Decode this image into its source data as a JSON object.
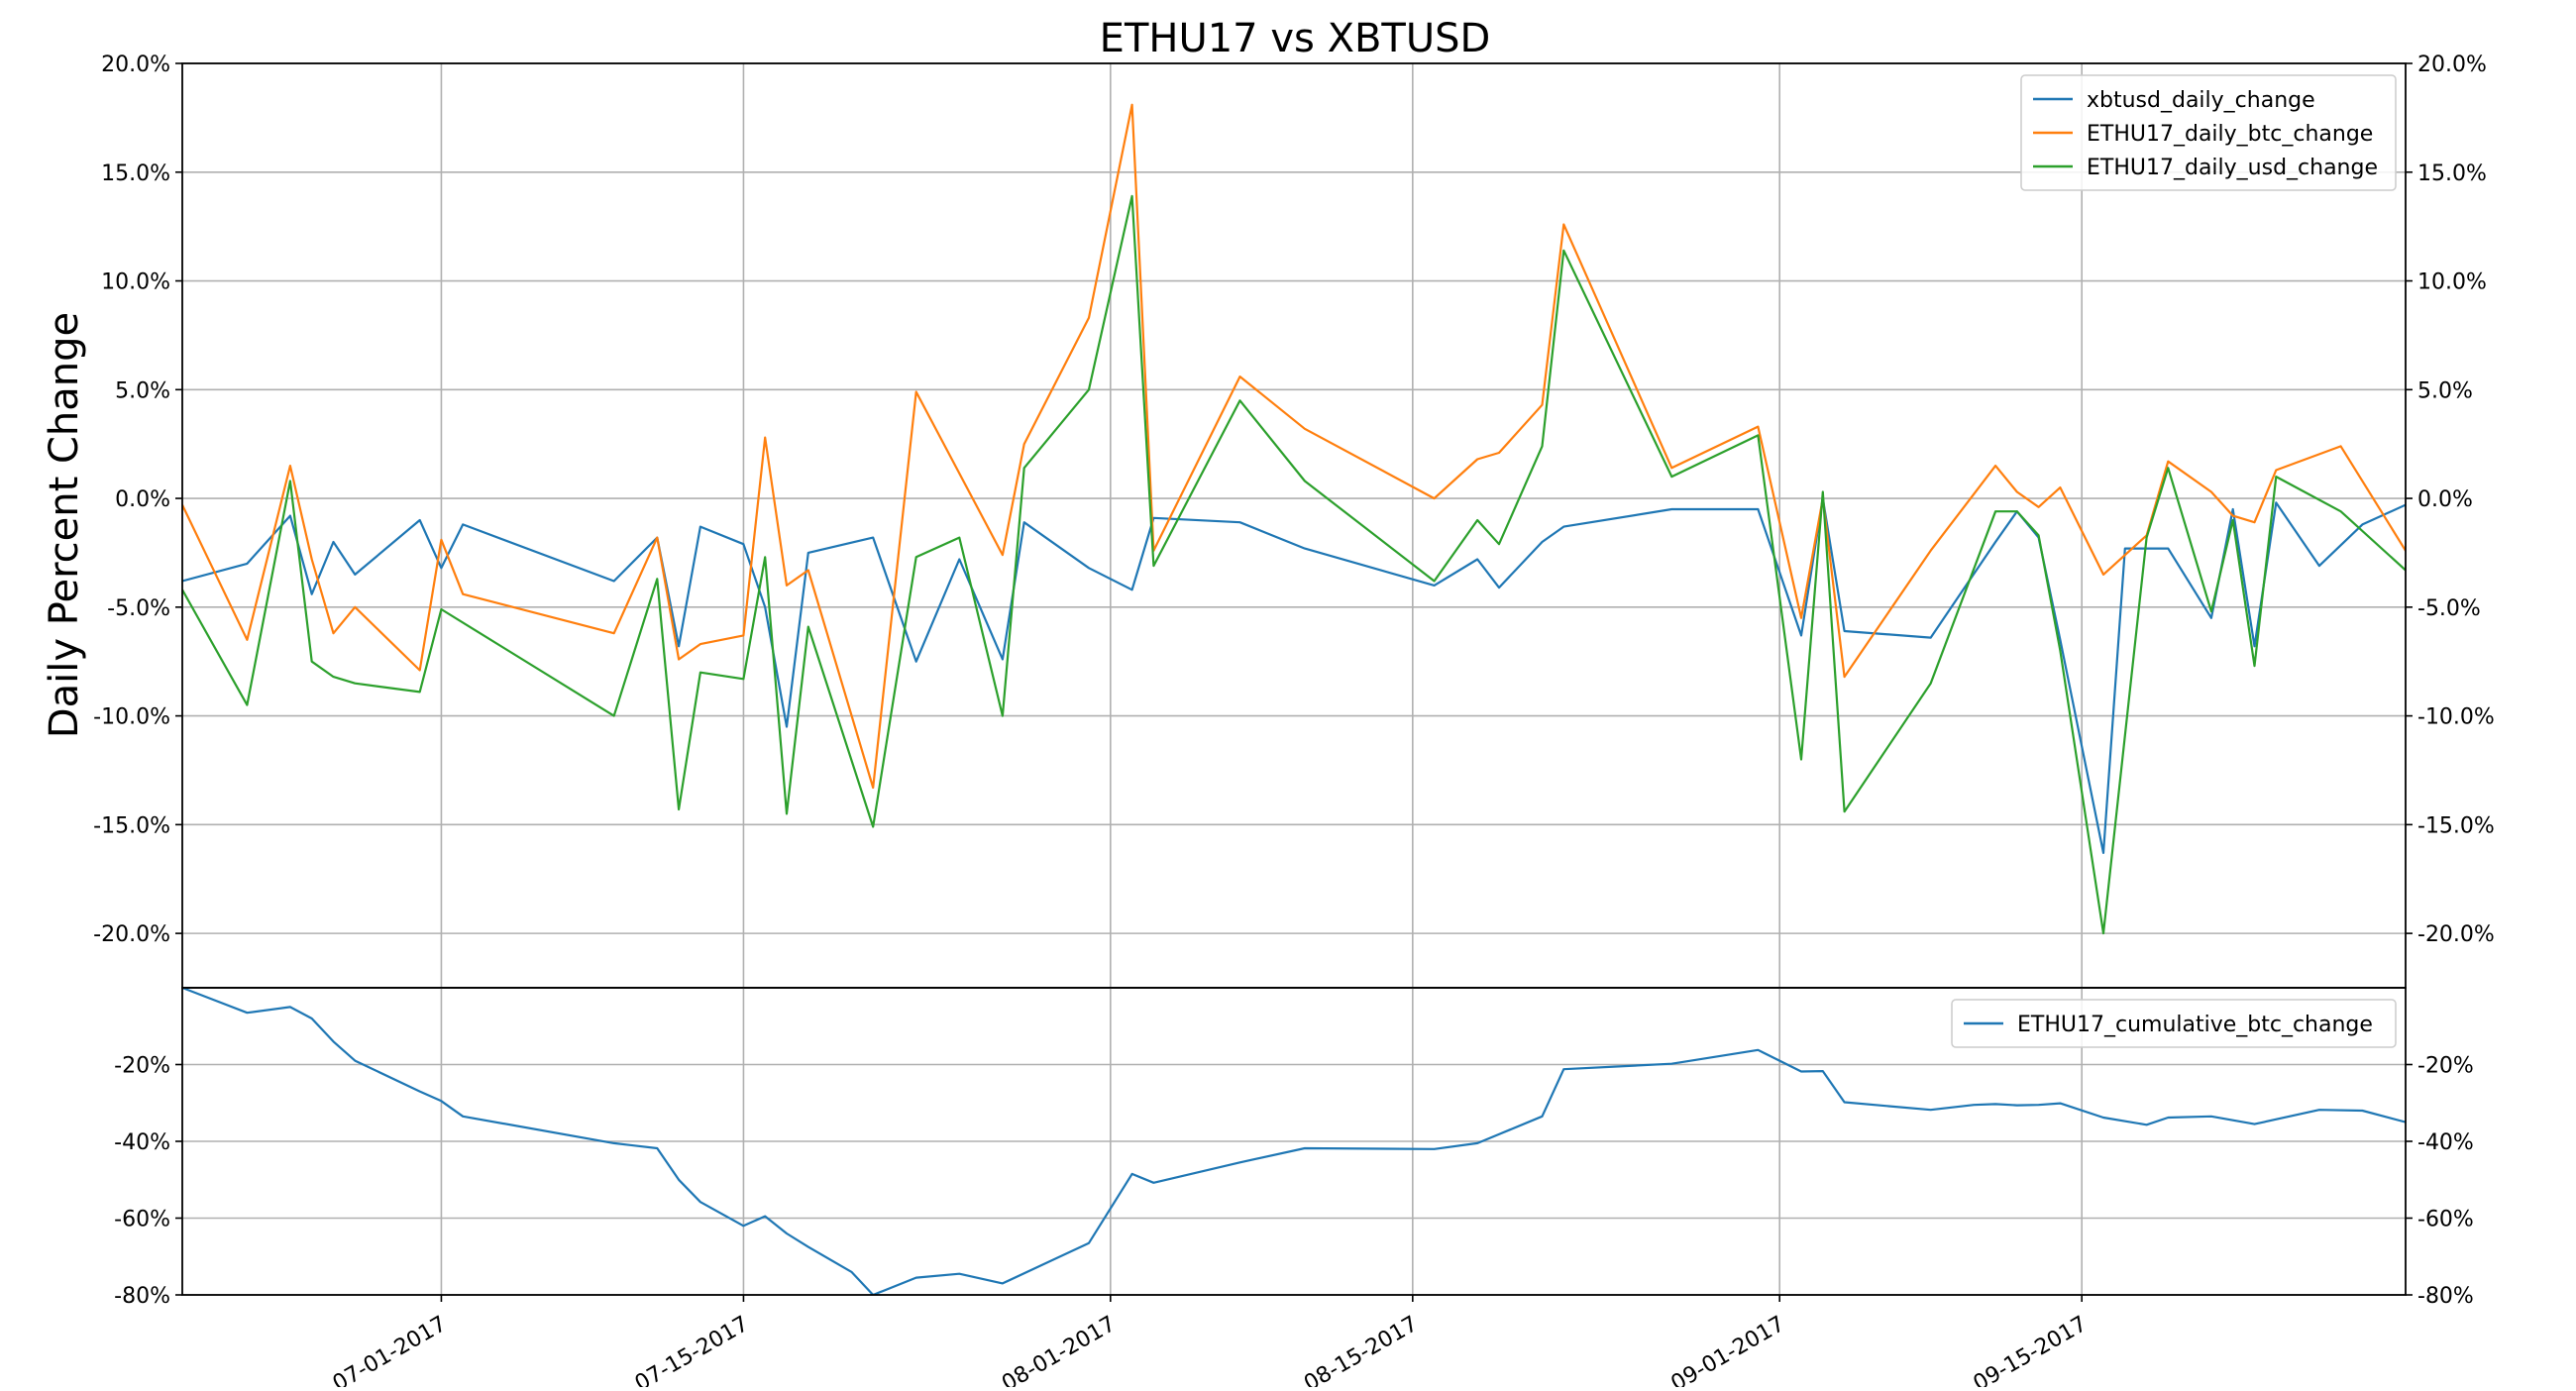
{
  "chart_data": [
    {
      "type": "line",
      "title": "ETHU17 vs XBTUSD",
      "xlabel": "",
      "ylabel": "Daily Percent Change",
      "ylim": [
        -22.5,
        20.0
      ],
      "yticks": [
        20,
        15,
        10,
        5,
        0,
        -5,
        -10,
        -15,
        -20
      ],
      "ytick_labels": [
        "20.0%",
        "15.0%",
        "10.0%",
        "5.0%",
        "0.0%",
        "-5.0%",
        "-10.0%",
        "-15.0%",
        "-20.0%"
      ],
      "x_date_range": [
        "2017-06-19",
        "2017-09-30"
      ],
      "grid": true,
      "legend_position": "top-right",
      "series": [
        {
          "name": "xbtusd_daily_change",
          "color": "#1f77b4",
          "points": [
            [
              "2017-06-19",
              -3.8
            ],
            [
              "2017-06-22",
              -3.0
            ],
            [
              "2017-06-24",
              -0.8
            ],
            [
              "2017-06-25",
              -4.4
            ],
            [
              "2017-06-26",
              -2.0
            ],
            [
              "2017-06-27",
              -3.5
            ],
            [
              "2017-06-30",
              -1.0
            ],
            [
              "2017-07-01",
              -3.2
            ],
            [
              "2017-07-02",
              -1.2
            ],
            [
              "2017-07-09",
              -3.8
            ],
            [
              "2017-07-11",
              -1.8
            ],
            [
              "2017-07-12",
              -6.8
            ],
            [
              "2017-07-13",
              -1.3
            ],
            [
              "2017-07-15",
              -2.1
            ],
            [
              "2017-07-16",
              -5.0
            ],
            [
              "2017-07-17",
              -10.5
            ],
            [
              "2017-07-18",
              -2.5
            ],
            [
              "2017-07-21",
              -1.8
            ],
            [
              "2017-07-23",
              -7.5
            ],
            [
              "2017-07-25",
              -2.8
            ],
            [
              "2017-07-27",
              -7.4
            ],
            [
              "2017-07-28",
              -1.1
            ],
            [
              "2017-07-31",
              -3.2
            ],
            [
              "2017-08-02",
              -4.2
            ],
            [
              "2017-08-03",
              -0.9
            ],
            [
              "2017-08-07",
              -1.1
            ],
            [
              "2017-08-10",
              -2.3
            ],
            [
              "2017-08-16",
              -4.0
            ],
            [
              "2017-08-18",
              -2.8
            ],
            [
              "2017-08-19",
              -4.1
            ],
            [
              "2017-08-21",
              -2.0
            ],
            [
              "2017-08-22",
              -1.3
            ],
            [
              "2017-08-27",
              -0.5
            ],
            [
              "2017-08-31",
              -0.5
            ],
            [
              "2017-09-02",
              -6.3
            ],
            [
              "2017-09-03",
              0.0
            ],
            [
              "2017-09-04",
              -6.1
            ],
            [
              "2017-09-08",
              -6.4
            ],
            [
              "2017-09-11",
              -2.0
            ],
            [
              "2017-09-12",
              -0.6
            ],
            [
              "2017-09-13",
              -1.8
            ],
            [
              "2017-09-14",
              -6.5
            ],
            [
              "2017-09-16",
              -16.3
            ],
            [
              "2017-09-17",
              -2.3
            ],
            [
              "2017-09-19",
              -2.3
            ],
            [
              "2017-09-21",
              -5.5
            ],
            [
              "2017-09-22",
              -0.5
            ],
            [
              "2017-09-23",
              -6.8
            ],
            [
              "2017-09-24",
              -0.2
            ],
            [
              "2017-09-26",
              -3.1
            ],
            [
              "2017-09-28",
              -1.2
            ],
            [
              "2017-09-30",
              -0.3
            ],
            [
              "2017-10-01",
              -0.5
            ]
          ]
        },
        {
          "name": "ETHU17_daily_btc_change",
          "color": "#ff7f0e",
          "points": [
            [
              "2017-06-19",
              -0.3
            ],
            [
              "2017-06-22",
              -6.5
            ],
            [
              "2017-06-24",
              1.5
            ],
            [
              "2017-06-25",
              -2.8
            ],
            [
              "2017-06-26",
              -6.2
            ],
            [
              "2017-06-27",
              -5.0
            ],
            [
              "2017-06-30",
              -7.9
            ],
            [
              "2017-07-01",
              -1.9
            ],
            [
              "2017-07-02",
              -4.4
            ],
            [
              "2017-07-09",
              -6.2
            ],
            [
              "2017-07-11",
              -1.8
            ],
            [
              "2017-07-12",
              -7.4
            ],
            [
              "2017-07-13",
              -6.7
            ],
            [
              "2017-07-15",
              -6.3
            ],
            [
              "2017-07-16",
              2.8
            ],
            [
              "2017-07-17",
              -4.0
            ],
            [
              "2017-07-18",
              -3.3
            ],
            [
              "2017-07-21",
              -13.3
            ],
            [
              "2017-07-23",
              4.9
            ],
            [
              "2017-07-27",
              -2.6
            ],
            [
              "2017-07-28",
              2.5
            ],
            [
              "2017-07-31",
              8.3
            ],
            [
              "2017-08-02",
              18.1
            ],
            [
              "2017-08-03",
              -2.4
            ],
            [
              "2017-08-07",
              5.6
            ],
            [
              "2017-08-10",
              3.2
            ],
            [
              "2017-08-16",
              0.0
            ],
            [
              "2017-08-18",
              1.8
            ],
            [
              "2017-08-19",
              2.1
            ],
            [
              "2017-08-21",
              4.3
            ],
            [
              "2017-08-22",
              12.6
            ],
            [
              "2017-08-27",
              1.4
            ],
            [
              "2017-08-31",
              3.3
            ],
            [
              "2017-09-02",
              -5.5
            ],
            [
              "2017-09-03",
              0.0
            ],
            [
              "2017-09-04",
              -8.2
            ],
            [
              "2017-09-08",
              -2.4
            ],
            [
              "2017-09-11",
              1.5
            ],
            [
              "2017-09-12",
              0.3
            ],
            [
              "2017-09-13",
              -0.4
            ],
            [
              "2017-09-14",
              0.5
            ],
            [
              "2017-09-16",
              -3.5
            ],
            [
              "2017-09-18",
              -1.7
            ],
            [
              "2017-09-19",
              1.7
            ],
            [
              "2017-09-21",
              0.3
            ],
            [
              "2017-09-22",
              -0.8
            ],
            [
              "2017-09-23",
              -1.1
            ],
            [
              "2017-09-24",
              1.3
            ],
            [
              "2017-09-27",
              2.4
            ],
            [
              "2017-10-01",
              -4.0
            ]
          ]
        },
        {
          "name": "ETHU17_daily_usd_change",
          "color": "#2ca02c",
          "points": [
            [
              "2017-06-19",
              -4.2
            ],
            [
              "2017-06-22",
              -9.5
            ],
            [
              "2017-06-24",
              0.8
            ],
            [
              "2017-06-25",
              -7.5
            ],
            [
              "2017-06-26",
              -8.2
            ],
            [
              "2017-06-27",
              -8.5
            ],
            [
              "2017-06-30",
              -8.9
            ],
            [
              "2017-07-01",
              -5.1
            ],
            [
              "2017-07-09",
              -10.0
            ],
            [
              "2017-07-11",
              -3.7
            ],
            [
              "2017-07-12",
              -14.3
            ],
            [
              "2017-07-13",
              -8.0
            ],
            [
              "2017-07-15",
              -8.3
            ],
            [
              "2017-07-16",
              -2.7
            ],
            [
              "2017-07-17",
              -14.5
            ],
            [
              "2017-07-18",
              -5.9
            ],
            [
              "2017-07-21",
              -15.1
            ],
            [
              "2017-07-23",
              -2.7
            ],
            [
              "2017-07-25",
              -1.8
            ],
            [
              "2017-07-27",
              -10.0
            ],
            [
              "2017-07-28",
              1.4
            ],
            [
              "2017-07-31",
              5.0
            ],
            [
              "2017-08-02",
              13.9
            ],
            [
              "2017-08-03",
              -3.1
            ],
            [
              "2017-08-07",
              4.5
            ],
            [
              "2017-08-10",
              0.8
            ],
            [
              "2017-08-16",
              -3.8
            ],
            [
              "2017-08-18",
              -1.0
            ],
            [
              "2017-08-19",
              -2.1
            ],
            [
              "2017-08-21",
              2.4
            ],
            [
              "2017-08-22",
              11.4
            ],
            [
              "2017-08-27",
              1.0
            ],
            [
              "2017-08-31",
              2.9
            ],
            [
              "2017-09-02",
              -12.0
            ],
            [
              "2017-09-03",
              0.3
            ],
            [
              "2017-09-04",
              -14.4
            ],
            [
              "2017-09-08",
              -8.5
            ],
            [
              "2017-09-11",
              -0.6
            ],
            [
              "2017-09-12",
              -0.6
            ],
            [
              "2017-09-13",
              -1.7
            ],
            [
              "2017-09-14",
              -7.0
            ],
            [
              "2017-09-16",
              -20.0
            ],
            [
              "2017-09-18",
              -1.8
            ],
            [
              "2017-09-19",
              1.4
            ],
            [
              "2017-09-21",
              -5.2
            ],
            [
              "2017-09-22",
              -1.0
            ],
            [
              "2017-09-23",
              -7.7
            ],
            [
              "2017-09-24",
              1.0
            ],
            [
              "2017-09-27",
              -0.6
            ],
            [
              "2017-09-30",
              -3.3
            ],
            [
              "2017-10-01",
              -4.7
            ]
          ]
        }
      ]
    },
    {
      "type": "line",
      "title": "",
      "xlabel": "",
      "ylabel": "",
      "ylim": [
        -80,
        0
      ],
      "yticks": [
        -20,
        -40,
        -60,
        -80
      ],
      "ytick_labels": [
        "-20%",
        "-40%",
        "-60%",
        "-80%"
      ],
      "xticks": [
        "2017-07-01",
        "2017-07-15",
        "2017-08-01",
        "2017-08-15",
        "2017-09-01",
        "2017-09-15"
      ],
      "xtick_labels": [
        "07-01-2017",
        "07-15-2017",
        "08-01-2017",
        "08-15-2017",
        "09-01-2017",
        "09-15-2017"
      ],
      "grid": true,
      "legend_position": "top-right",
      "series": [
        {
          "name": "ETHU17_cumulative_btc_change",
          "color": "#1f77b4",
          "points": [
            [
              "2017-06-19",
              0
            ],
            [
              "2017-06-22",
              -6.5
            ],
            [
              "2017-06-24",
              -5.0
            ],
            [
              "2017-06-25",
              -8.0
            ],
            [
              "2017-06-26",
              -14.0
            ],
            [
              "2017-06-27",
              -19.0
            ],
            [
              "2017-06-30",
              -27.0
            ],
            [
              "2017-07-01",
              -29.5
            ],
            [
              "2017-07-02",
              -33.5
            ],
            [
              "2017-07-09",
              -40.5
            ],
            [
              "2017-07-11",
              -41.8
            ],
            [
              "2017-07-12",
              -50.0
            ],
            [
              "2017-07-13",
              -55.8
            ],
            [
              "2017-07-15",
              -62.0
            ],
            [
              "2017-07-16",
              -59.5
            ],
            [
              "2017-07-17",
              -64.0
            ],
            [
              "2017-07-18",
              -67.5
            ],
            [
              "2017-07-20",
              -74.0
            ],
            [
              "2017-07-21",
              -80.0
            ],
            [
              "2017-07-23",
              -75.5
            ],
            [
              "2017-07-25",
              -74.5
            ],
            [
              "2017-07-27",
              -77.0
            ],
            [
              "2017-07-31",
              -66.5
            ],
            [
              "2017-08-02",
              -48.5
            ],
            [
              "2017-08-03",
              -50.8
            ],
            [
              "2017-08-07",
              -45.5
            ],
            [
              "2017-08-10",
              -41.8
            ],
            [
              "2017-08-16",
              -42.0
            ],
            [
              "2017-08-18",
              -40.5
            ],
            [
              "2017-08-21",
              -33.5
            ],
            [
              "2017-08-22",
              -21.2
            ],
            [
              "2017-08-27",
              -19.8
            ],
            [
              "2017-08-31",
              -16.2
            ],
            [
              "2017-09-02",
              -21.8
            ],
            [
              "2017-09-03",
              -21.7
            ],
            [
              "2017-09-04",
              -29.8
            ],
            [
              "2017-09-08",
              -31.8
            ],
            [
              "2017-09-10",
              -30.5
            ],
            [
              "2017-09-11",
              -30.3
            ],
            [
              "2017-09-12",
              -30.6
            ],
            [
              "2017-09-13",
              -30.5
            ],
            [
              "2017-09-14",
              -30.1
            ],
            [
              "2017-09-16",
              -33.8
            ],
            [
              "2017-09-18",
              -35.7
            ],
            [
              "2017-09-19",
              -33.8
            ],
            [
              "2017-09-21",
              -33.5
            ],
            [
              "2017-09-23",
              -35.5
            ],
            [
              "2017-09-26",
              -31.8
            ],
            [
              "2017-09-28",
              -32.0
            ],
            [
              "2017-09-30",
              -35.0
            ],
            [
              "2017-10-01",
              -39.0
            ]
          ]
        }
      ]
    }
  ]
}
